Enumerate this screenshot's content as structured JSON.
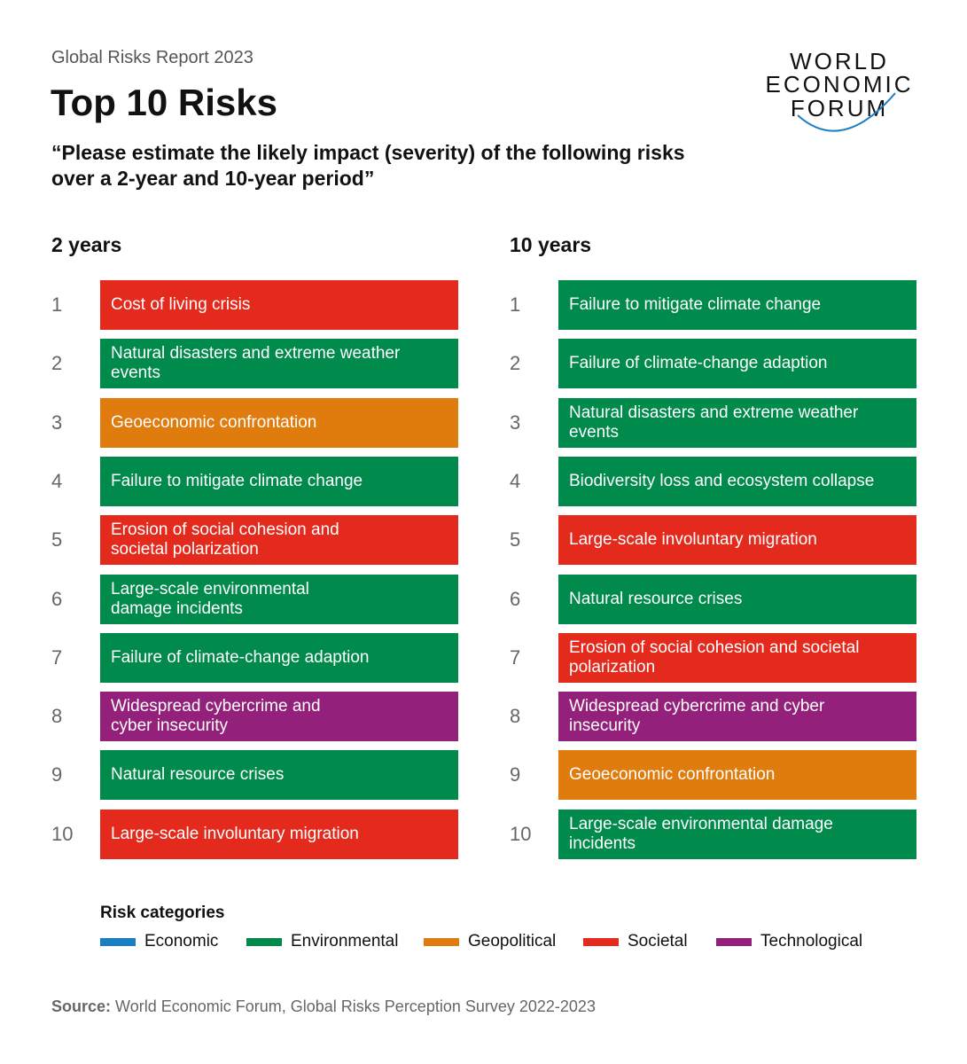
{
  "header": {
    "report": "Global Risks Report 2023",
    "title": "Top 10 Risks",
    "question": "“Please estimate the likely impact (severity) of the following risks over a 2-year and 10-year period”"
  },
  "logo": {
    "lines": [
      "WORLD",
      "ECONOMIC",
      "FORUM"
    ]
  },
  "columns": [
    {
      "heading": "2 years",
      "items": [
        {
          "rank": 1,
          "lines": [
            "Cost of living crisis"
          ],
          "color": "#e42a1d"
        },
        {
          "rank": 2,
          "lines": [
            "Natural disasters and extreme weather",
            "events"
          ],
          "color": "#008a4b"
        },
        {
          "rank": 3,
          "lines": [
            "Geoeconomic confrontation"
          ],
          "color": "#e07c0e"
        },
        {
          "rank": 4,
          "lines": [
            "Failure to mitigate climate change"
          ],
          "color": "#008a4b"
        },
        {
          "rank": 5,
          "lines": [
            "Erosion of social cohesion and",
            "societal polarization"
          ],
          "color": "#e42a1d"
        },
        {
          "rank": 6,
          "lines": [
            "Large-scale environmental",
            "damage incidents"
          ],
          "color": "#008a4b"
        },
        {
          "rank": 7,
          "lines": [
            "Failure of climate-change adaption"
          ],
          "color": "#008a4b"
        },
        {
          "rank": 8,
          "lines": [
            "Widespread cybercrime and",
            "cyber insecurity"
          ],
          "color": "#93207a"
        },
        {
          "rank": 9,
          "lines": [
            "Natural resource crises"
          ],
          "color": "#008a4b"
        },
        {
          "rank": 10,
          "lines": [
            "Large-scale involuntary migration"
          ],
          "color": "#e42a1d"
        }
      ]
    },
    {
      "heading": "10 years",
      "items": [
        {
          "rank": 1,
          "lines": [
            "Failure to mitigate climate change"
          ],
          "color": "#008a4b"
        },
        {
          "rank": 2,
          "lines": [
            "Failure of climate-change adaption"
          ],
          "color": "#008a4b"
        },
        {
          "rank": 3,
          "lines": [
            "Natural disasters and extreme weather",
            "events"
          ],
          "color": "#008a4b"
        },
        {
          "rank": 4,
          "lines": [
            "Biodiversity loss and ecosystem collapse"
          ],
          "color": "#008a4b"
        },
        {
          "rank": 5,
          "lines": [
            "Large-scale involuntary migration"
          ],
          "color": "#e42a1d"
        },
        {
          "rank": 6,
          "lines": [
            "Natural resource crises"
          ],
          "color": "#008a4b"
        },
        {
          "rank": 7,
          "lines": [
            "Erosion of social cohesion and societal",
            "polarization"
          ],
          "color": "#e42a1d"
        },
        {
          "rank": 8,
          "lines": [
            "Widespread cybercrime and cyber",
            "insecurity"
          ],
          "color": "#93207a"
        },
        {
          "rank": 9,
          "lines": [
            "Geoeconomic confrontation"
          ],
          "color": "#e07c0e"
        },
        {
          "rank": 10,
          "lines": [
            "Large-scale environmental damage",
            "incidents"
          ],
          "color": "#008a4b"
        }
      ]
    }
  ],
  "legend": {
    "title": "Risk categories",
    "categories": [
      {
        "name": "Economic",
        "color": "#1a7fc1"
      },
      {
        "name": "Environmental",
        "color": "#008a4b"
      },
      {
        "name": "Geopolitical",
        "color": "#e07c0e"
      },
      {
        "name": "Societal",
        "color": "#e42a1d"
      },
      {
        "name": "Technological",
        "color": "#93207a"
      }
    ]
  },
  "source": {
    "label": "Source:",
    "text": "World Economic Forum, Global Risks Perception Survey 2022-2023"
  }
}
